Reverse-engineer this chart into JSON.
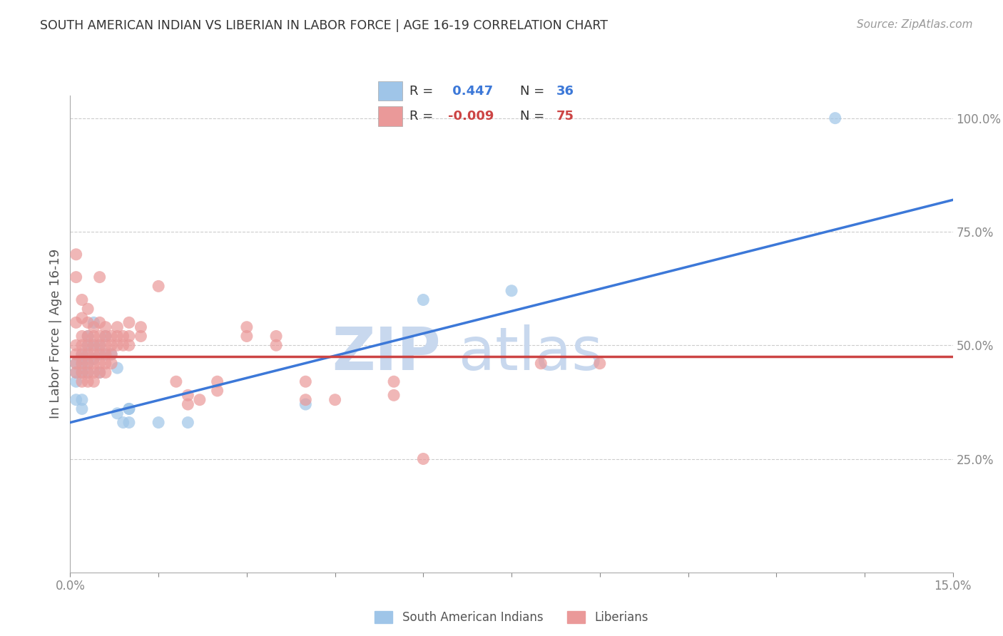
{
  "title": "SOUTH AMERICAN INDIAN VS LIBERIAN IN LABOR FORCE | AGE 16-19 CORRELATION CHART",
  "source": "Source: ZipAtlas.com",
  "ylabel": "In Labor Force | Age 16-19",
  "xlim": [
    0.0,
    0.15
  ],
  "ylim": [
    0.0,
    1.05
  ],
  "ytick_positions": [
    0.25,
    0.5,
    0.75,
    1.0
  ],
  "yticklabels": [
    "25.0%",
    "50.0%",
    "75.0%",
    "100.0%"
  ],
  "grid_color": "#cccccc",
  "background_color": "#ffffff",
  "watermark_zip": "ZIP",
  "watermark_atlas": "atlas",
  "watermark_color": "#c8d8ee",
  "legend_R1": " 0.447",
  "legend_N1": "36",
  "legend_R2": "-0.009",
  "legend_N2": "75",
  "blue_color": "#9fc5e8",
  "pink_color": "#ea9999",
  "blue_line_color": "#3c78d8",
  "pink_line_color": "#cc4444",
  "blue_trend_x0": 0.0,
  "blue_trend_y0": 0.33,
  "blue_trend_x1": 0.15,
  "blue_trend_y1": 0.82,
  "pink_trend_x0": 0.0,
  "pink_trend_y0": 0.475,
  "pink_trend_x1": 0.15,
  "pink_trend_y1": 0.475,
  "blue_scatter": [
    [
      0.001,
      0.38
    ],
    [
      0.001,
      0.42
    ],
    [
      0.001,
      0.44
    ],
    [
      0.001,
      0.46
    ],
    [
      0.002,
      0.44
    ],
    [
      0.002,
      0.46
    ],
    [
      0.002,
      0.47
    ],
    [
      0.002,
      0.48
    ],
    [
      0.002,
      0.36
    ],
    [
      0.002,
      0.38
    ],
    [
      0.003,
      0.44
    ],
    [
      0.003,
      0.46
    ],
    [
      0.003,
      0.48
    ],
    [
      0.003,
      0.5
    ],
    [
      0.003,
      0.52
    ],
    [
      0.004,
      0.47
    ],
    [
      0.004,
      0.55
    ],
    [
      0.004,
      0.5
    ],
    [
      0.005,
      0.48
    ],
    [
      0.005,
      0.5
    ],
    [
      0.005,
      0.44
    ],
    [
      0.006,
      0.52
    ],
    [
      0.006,
      0.48
    ],
    [
      0.007,
      0.48
    ],
    [
      0.008,
      0.45
    ],
    [
      0.008,
      0.35
    ],
    [
      0.009,
      0.33
    ],
    [
      0.01,
      0.33
    ],
    [
      0.01,
      0.36
    ],
    [
      0.01,
      0.36
    ],
    [
      0.015,
      0.33
    ],
    [
      0.02,
      0.33
    ],
    [
      0.04,
      0.37
    ],
    [
      0.06,
      0.6
    ],
    [
      0.075,
      0.62
    ],
    [
      0.13,
      1.0
    ]
  ],
  "pink_scatter": [
    [
      0.001,
      0.65
    ],
    [
      0.001,
      0.7
    ],
    [
      0.001,
      0.55
    ],
    [
      0.001,
      0.5
    ],
    [
      0.001,
      0.48
    ],
    [
      0.001,
      0.46
    ],
    [
      0.001,
      0.44
    ],
    [
      0.002,
      0.6
    ],
    [
      0.002,
      0.56
    ],
    [
      0.002,
      0.52
    ],
    [
      0.002,
      0.5
    ],
    [
      0.002,
      0.48
    ],
    [
      0.002,
      0.46
    ],
    [
      0.002,
      0.44
    ],
    [
      0.002,
      0.42
    ],
    [
      0.003,
      0.58
    ],
    [
      0.003,
      0.55
    ],
    [
      0.003,
      0.52
    ],
    [
      0.003,
      0.5
    ],
    [
      0.003,
      0.48
    ],
    [
      0.003,
      0.46
    ],
    [
      0.003,
      0.44
    ],
    [
      0.003,
      0.42
    ],
    [
      0.004,
      0.54
    ],
    [
      0.004,
      0.52
    ],
    [
      0.004,
      0.5
    ],
    [
      0.004,
      0.48
    ],
    [
      0.004,
      0.46
    ],
    [
      0.004,
      0.44
    ],
    [
      0.004,
      0.42
    ],
    [
      0.005,
      0.52
    ],
    [
      0.005,
      0.5
    ],
    [
      0.005,
      0.48
    ],
    [
      0.005,
      0.46
    ],
    [
      0.005,
      0.44
    ],
    [
      0.005,
      0.55
    ],
    [
      0.005,
      0.65
    ],
    [
      0.006,
      0.54
    ],
    [
      0.006,
      0.52
    ],
    [
      0.006,
      0.5
    ],
    [
      0.006,
      0.48
    ],
    [
      0.006,
      0.46
    ],
    [
      0.006,
      0.44
    ],
    [
      0.007,
      0.52
    ],
    [
      0.007,
      0.5
    ],
    [
      0.007,
      0.48
    ],
    [
      0.007,
      0.46
    ],
    [
      0.008,
      0.54
    ],
    [
      0.008,
      0.52
    ],
    [
      0.008,
      0.5
    ],
    [
      0.009,
      0.5
    ],
    [
      0.009,
      0.52
    ],
    [
      0.01,
      0.55
    ],
    [
      0.01,
      0.52
    ],
    [
      0.01,
      0.5
    ],
    [
      0.012,
      0.54
    ],
    [
      0.012,
      0.52
    ],
    [
      0.015,
      0.63
    ],
    [
      0.018,
      0.42
    ],
    [
      0.02,
      0.39
    ],
    [
      0.02,
      0.37
    ],
    [
      0.022,
      0.38
    ],
    [
      0.025,
      0.42
    ],
    [
      0.025,
      0.4
    ],
    [
      0.03,
      0.54
    ],
    [
      0.03,
      0.52
    ],
    [
      0.035,
      0.52
    ],
    [
      0.035,
      0.5
    ],
    [
      0.04,
      0.42
    ],
    [
      0.04,
      0.38
    ],
    [
      0.045,
      0.38
    ],
    [
      0.055,
      0.39
    ],
    [
      0.055,
      0.42
    ],
    [
      0.06,
      0.25
    ],
    [
      0.08,
      0.46
    ],
    [
      0.09,
      0.46
    ]
  ]
}
